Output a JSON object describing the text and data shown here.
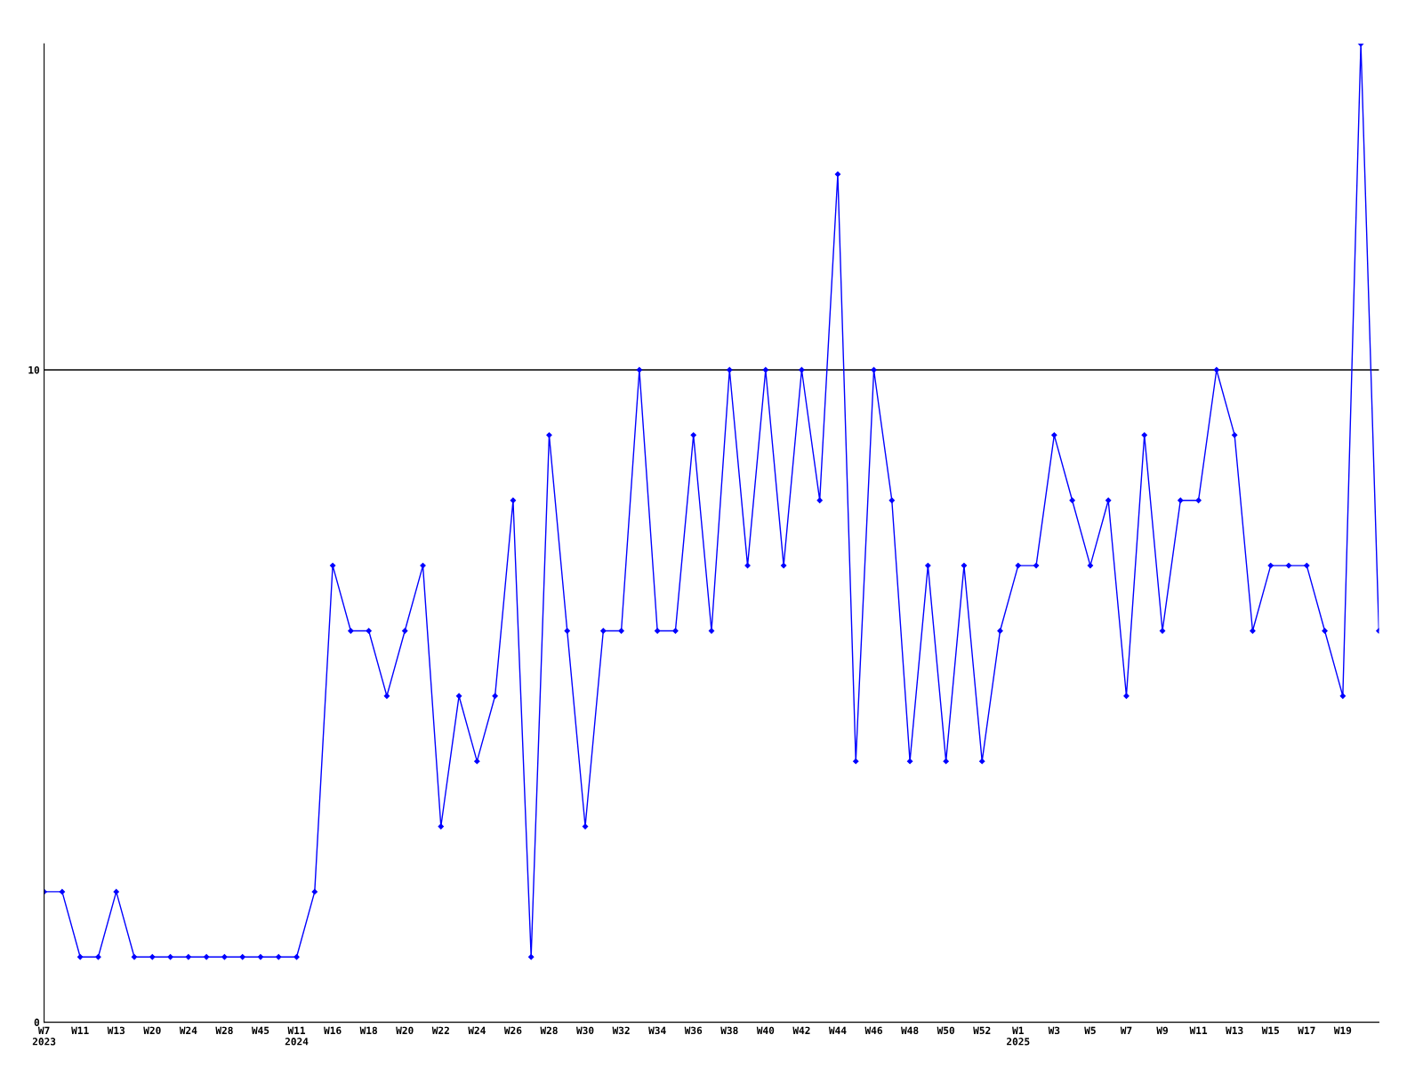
{
  "chart_data": {
    "type": "line",
    "categories": [
      "W7\n2023",
      null,
      "W11",
      null,
      "W13",
      null,
      "W20",
      null,
      "W24",
      null,
      "W28",
      null,
      "W45",
      null,
      "W11\n2024",
      null,
      "W16",
      null,
      "W18",
      null,
      "W20",
      null,
      "W22",
      null,
      "W24",
      null,
      "W26",
      null,
      "W28",
      null,
      "W30",
      null,
      "W32",
      null,
      "W34",
      null,
      "W36",
      null,
      "W38",
      null,
      "W40",
      null,
      "W42",
      null,
      "W44",
      null,
      "W46",
      null,
      "W48",
      null,
      "W50",
      null,
      "W52",
      null,
      "W1\n2025",
      null,
      "W3",
      null,
      "W5",
      null,
      "W7",
      null,
      "W9",
      null,
      "W11",
      null,
      "W13",
      null,
      "W15",
      null,
      "W17",
      null,
      "W19",
      null,
      null
    ],
    "series": [
      {
        "color": "#0000ff",
        "values": [
          2,
          2,
          1,
          1,
          2,
          1,
          1,
          1,
          1,
          1,
          1,
          1,
          1,
          1,
          1,
          2,
          7,
          6,
          6,
          5,
          6,
          7,
          3,
          5,
          4,
          5,
          8,
          1,
          9,
          6,
          3,
          6,
          6,
          10,
          6,
          6,
          9,
          6,
          10,
          7,
          10,
          7,
          10,
          8,
          13,
          4,
          10,
          8,
          4,
          7,
          4,
          7,
          4,
          6,
          7,
          7,
          9,
          8,
          7,
          8,
          5,
          9,
          6,
          8,
          8,
          10,
          9,
          6,
          7,
          7,
          7,
          6,
          5,
          15,
          6
        ]
      }
    ],
    "ylim": [
      0,
      15
    ],
    "yticks": [
      0,
      10
    ],
    "ref_lines": [
      {
        "axis": "y",
        "value": 10,
        "color": "#000000"
      }
    ],
    "marker": "diamond",
    "line_style": "solid",
    "grid": false,
    "legend": false
  }
}
